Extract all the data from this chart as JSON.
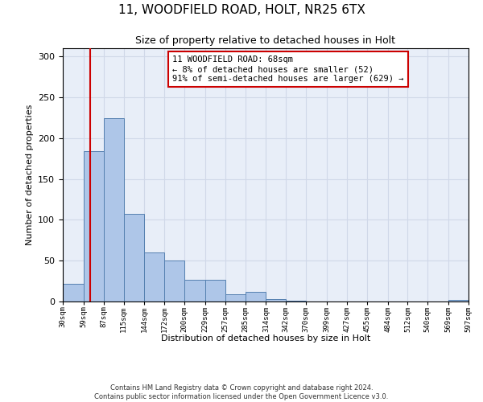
{
  "title": "11, WOODFIELD ROAD, HOLT, NR25 6TX",
  "subtitle": "Size of property relative to detached houses in Holt",
  "xlabel": "Distribution of detached houses by size in Holt",
  "ylabel": "Number of detached properties",
  "bin_edges": [
    30,
    59,
    87,
    115,
    144,
    172,
    200,
    229,
    257,
    285,
    314,
    342,
    370,
    399,
    427,
    455,
    484,
    512,
    540,
    569,
    597
  ],
  "bar_heights": [
    22,
    184,
    224,
    107,
    60,
    50,
    27,
    27,
    9,
    12,
    3,
    1,
    0,
    0,
    0,
    0,
    0,
    0,
    0,
    2
  ],
  "bar_color": "#aec6e8",
  "bar_edge_color": "#5580b0",
  "vline_x": 68,
  "vline_color": "#cc0000",
  "annotation_text": "11 WOODFIELD ROAD: 68sqm\n← 8% of detached houses are smaller (52)\n91% of semi-detached houses are larger (629) →",
  "annotation_box_color": "#ffffff",
  "annotation_box_edgecolor": "#cc0000",
  "ylim": [
    0,
    310
  ],
  "yticks": [
    0,
    50,
    100,
    150,
    200,
    250,
    300
  ],
  "tick_labels": [
    "30sqm",
    "59sqm",
    "87sqm",
    "115sqm",
    "144sqm",
    "172sqm",
    "200sqm",
    "229sqm",
    "257sqm",
    "285sqm",
    "314sqm",
    "342sqm",
    "370sqm",
    "399sqm",
    "427sqm",
    "455sqm",
    "484sqm",
    "512sqm",
    "540sqm",
    "569sqm",
    "597sqm"
  ],
  "footer_text": "Contains HM Land Registry data © Crown copyright and database right 2024.\nContains public sector information licensed under the Open Government Licence v3.0.",
  "grid_color": "#d0d8e8",
  "bg_color": "#e8eef8"
}
